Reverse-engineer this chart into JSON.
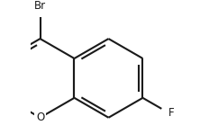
{
  "bg_color": "#ffffff",
  "line_color": "#1a1a1a",
  "line_width": 1.5,
  "font_size": 8.5,
  "xlim": [
    -1.1,
    2.4
  ],
  "ylim": [
    -1.4,
    1.6
  ],
  "figsize": [
    2.22,
    1.49
  ],
  "dpi": 100
}
